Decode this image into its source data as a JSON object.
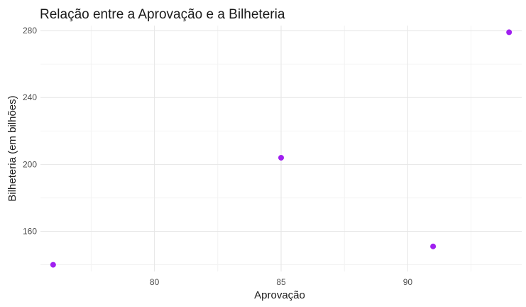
{
  "chart_data": {
    "type": "scatter",
    "title": "Relação entre a Aprovação e a Bilheteria",
    "xlabel": "Aprovação",
    "ylabel": "Bilheteria (em bilhões)",
    "xlim": [
      75.5,
      94.5
    ],
    "ylim": [
      136,
      283
    ],
    "x_ticks": [
      "80",
      "85",
      "90"
    ],
    "y_ticks": [
      "160",
      "200",
      "240",
      "280"
    ],
    "grid": true,
    "legend": "none",
    "point_color": "#A020F0",
    "points": [
      {
        "x": 76,
        "y": 140
      },
      {
        "x": 85,
        "y": 204
      },
      {
        "x": 91,
        "y": 151
      },
      {
        "x": 94,
        "y": 279
      }
    ]
  }
}
